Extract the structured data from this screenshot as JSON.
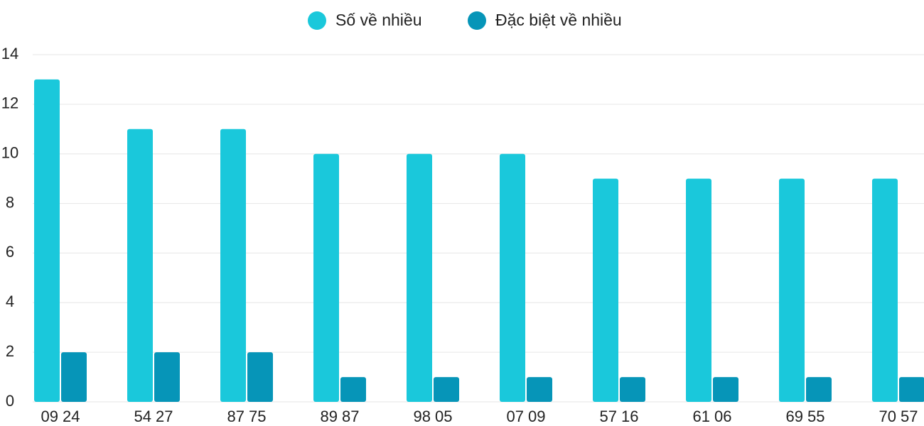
{
  "chart_data": {
    "type": "bar",
    "categories": [
      "09 24",
      "54 27",
      "87 75",
      "89 87",
      "98 05",
      "07 09",
      "57 16",
      "61 06",
      "69 55",
      "70 57"
    ],
    "series": [
      {
        "name": "Số về nhiều",
        "color": "#1ac8db",
        "values": [
          13,
          11,
          11,
          10,
          10,
          10,
          9,
          9,
          9,
          9
        ]
      },
      {
        "name": "Đặc biệt về nhiều",
        "color": "#0695b8",
        "values": [
          2,
          2,
          2,
          1,
          1,
          1,
          1,
          1,
          1,
          1
        ]
      }
    ],
    "ylim": [
      0,
      14
    ],
    "yticks": [
      0,
      2,
      4,
      6,
      8,
      10,
      12,
      14
    ],
    "grid": true,
    "legend": "top"
  }
}
